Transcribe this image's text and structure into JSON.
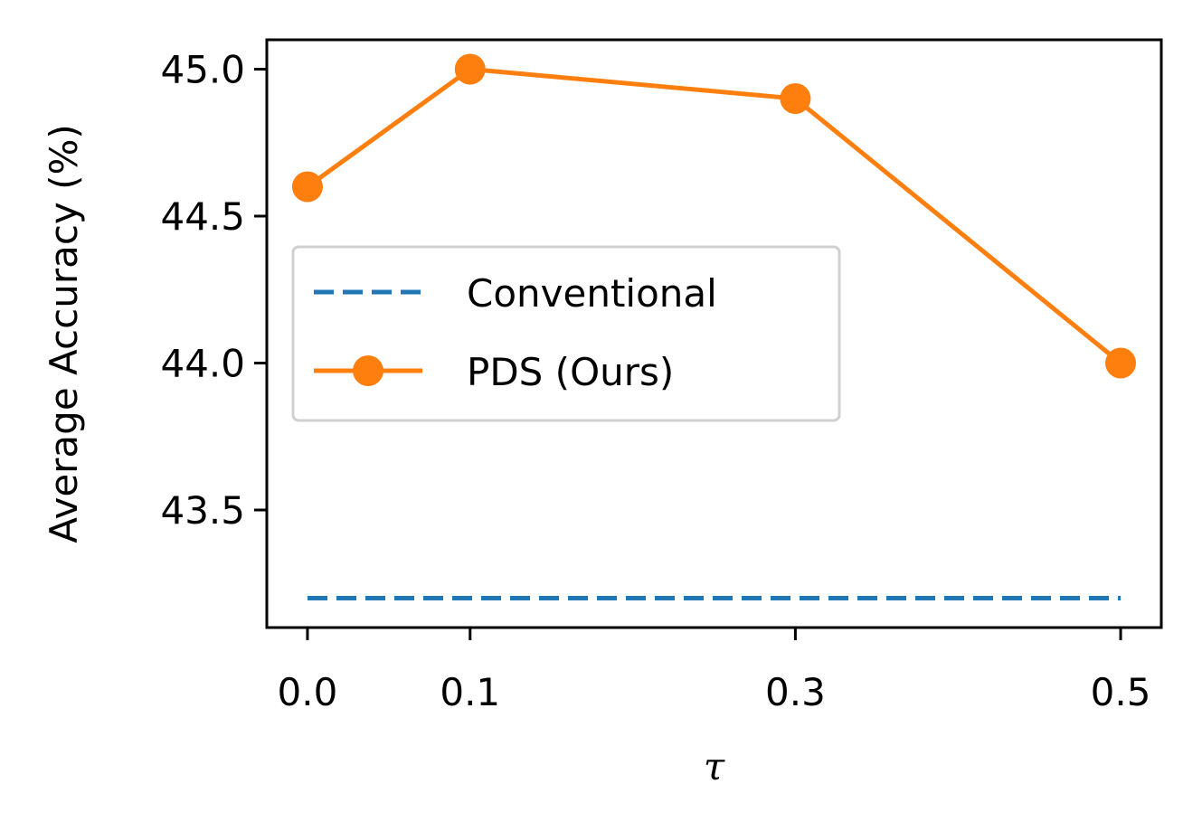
{
  "chart_data": {
    "type": "line",
    "title": "",
    "xlabel": "τ",
    "ylabel": "Average Accuracy (%)",
    "x": [
      0.0,
      0.1,
      0.3,
      0.5
    ],
    "x_tick_labels": [
      "0.0",
      "0.1",
      "0.3",
      "0.5"
    ],
    "xlim": [
      -0.025,
      0.525
    ],
    "ylim": [
      43.1,
      45.1
    ],
    "y_ticks": [
      43.5,
      44.0,
      44.5,
      45.0
    ],
    "y_tick_labels": [
      "43.5",
      "44.0",
      "44.5",
      "45.0"
    ],
    "grid": false,
    "legend_position": "center-left",
    "series": [
      {
        "name": "Conventional",
        "values": [
          43.2,
          43.2,
          43.2,
          43.2
        ],
        "color": "#1f77b4",
        "style": "dashed",
        "marker": "none"
      },
      {
        "name": "PDS (Ours)",
        "values": [
          44.6,
          45.0,
          44.9,
          44.0
        ],
        "color": "#ff7f0e",
        "style": "solid",
        "marker": "circle"
      }
    ]
  }
}
